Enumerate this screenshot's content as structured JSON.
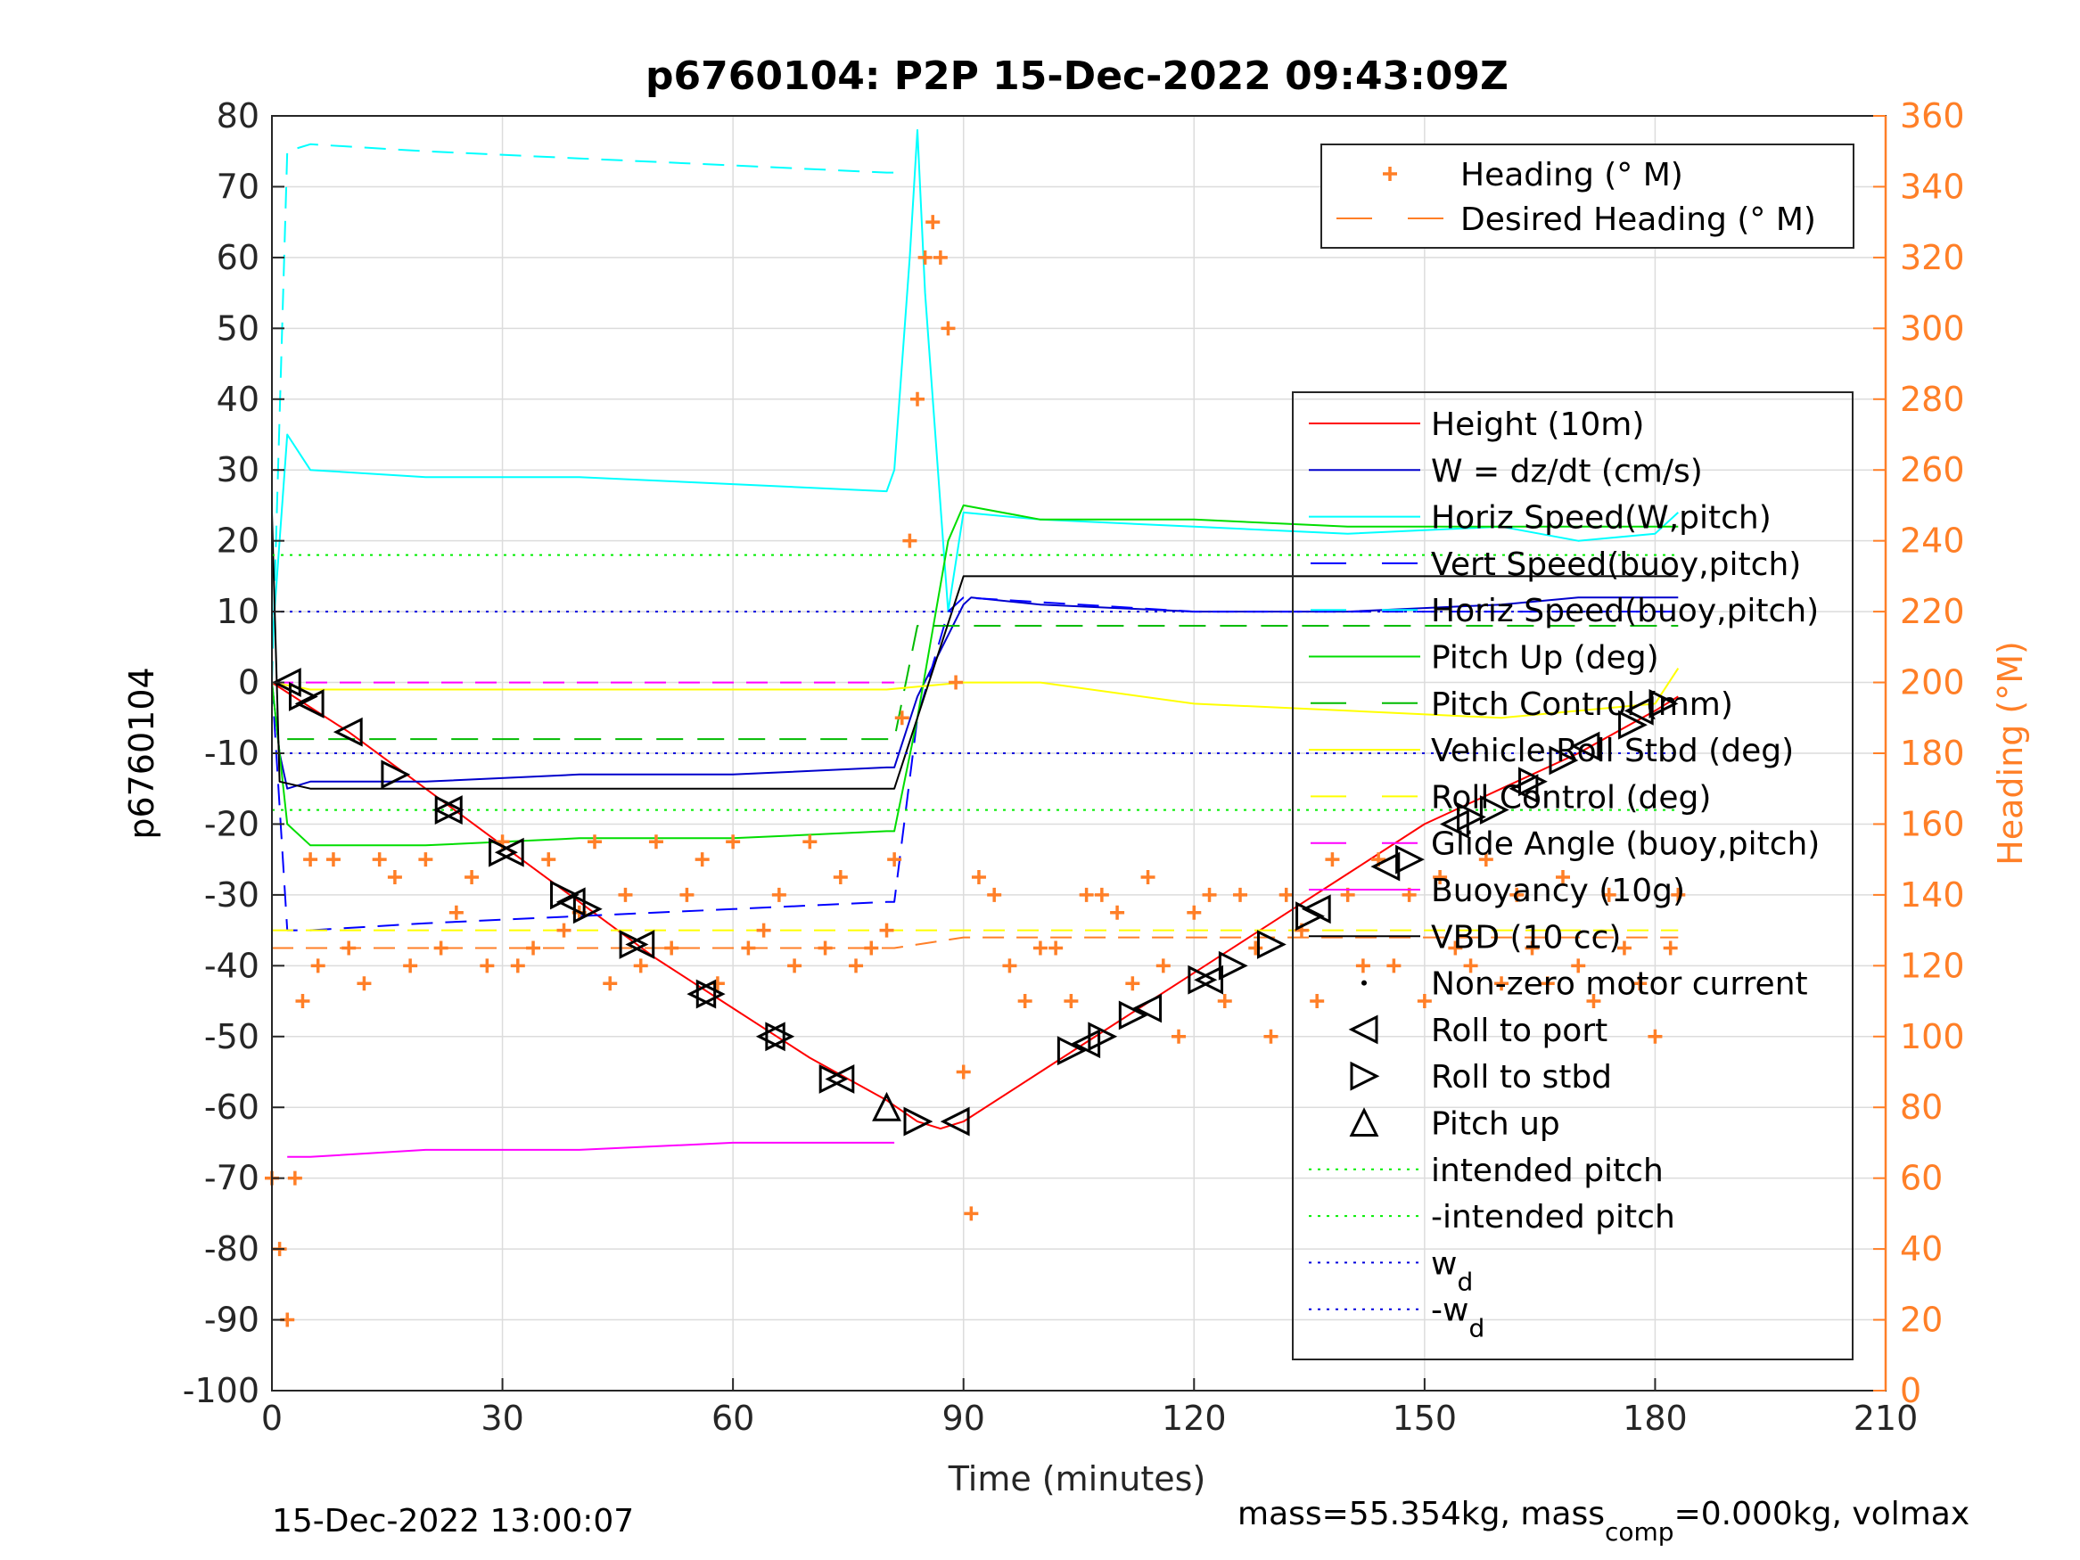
{
  "colors": {
    "heading": "#FF7F27",
    "height": "#FF0000",
    "w": "#0000CC",
    "horiz_speed_w": "#00FFFF",
    "vert_speed_buoy": "#0000FF",
    "horiz_speed_buoy": "#00FFFF",
    "pitch_up": "#00DD00",
    "pitch_control": "#00BB00",
    "vehicle_roll": "#FFFF00",
    "roll_control": "#FFFF00",
    "glide_angle": "#FF00FF",
    "buoyancy": "#FF00FF",
    "vbd": "#000000",
    "intended_pitch": "#00EE00",
    "wd": "#0000DD"
  },
  "chart_data": {
    "type": "line",
    "title": "p6760104: P2P 15-Dec-2022 09:43:09Z",
    "xlabel": "Time (minutes)",
    "ylabel": "p6760104",
    "ylabel_right": "Heading (°M)",
    "xlim": [
      0,
      210
    ],
    "ylim": [
      -100,
      80
    ],
    "ylim_right": [
      0,
      360
    ],
    "x_ticks": [
      "0",
      "30",
      "60",
      "90",
      "120",
      "150",
      "180",
      "210"
    ],
    "y_ticks": [
      "-100",
      "-90",
      "-80",
      "-70",
      "-60",
      "-50",
      "-40",
      "-30",
      "-20",
      "-10",
      "0",
      "10",
      "20",
      "30",
      "40",
      "50",
      "60",
      "70",
      "80"
    ],
    "y_ticks_right": [
      "0",
      "20",
      "40",
      "60",
      "80",
      "100",
      "120",
      "140",
      "160",
      "180",
      "200",
      "220",
      "240",
      "260",
      "280",
      "300",
      "320",
      "340",
      "360"
    ],
    "grid": true,
    "footer_left": "15-Dec-2022 13:00:07",
    "footer_right": {
      "prefix": "mass=55.354kg, mass",
      "sub": "comp",
      "suffix": "=0.000kg, volmax"
    },
    "legend_top": [
      {
        "label": "Heading (° M)",
        "style": "plus"
      },
      {
        "label": "Desired Heading (° M)",
        "style": "dash"
      }
    ],
    "legend_main": [
      {
        "label": "Height (10m)",
        "style": "solid",
        "color": "#FF0000"
      },
      {
        "label": "W = dz/dt (cm/s)",
        "style": "solid",
        "color": "#0000CC"
      },
      {
        "label": "Horiz Speed(W,pitch)",
        "style": "solid",
        "color": "#00FFFF"
      },
      {
        "label": "Vert Speed(buoy,pitch)",
        "style": "dash",
        "color": "#0000FF"
      },
      {
        "label": "Horiz Speed(buoy,pitch)",
        "style": "dash",
        "color": "#00FFFF"
      },
      {
        "label": "Pitch Up (deg)",
        "style": "solid",
        "color": "#00DD00"
      },
      {
        "label": "Pitch Control (mm)",
        "style": "dash",
        "color": "#00BB00"
      },
      {
        "label": "Vehicle Roll Stbd (deg)",
        "style": "solid",
        "color": "#FFFF00"
      },
      {
        "label": "Roll Control (deg)",
        "style": "dash",
        "color": "#FFFF00"
      },
      {
        "label": "Glide Angle (buoy,pitch)",
        "style": "dash",
        "color": "#FF00FF"
      },
      {
        "label": "Buoyancy (10g)",
        "style": "solid",
        "color": "#FF00FF"
      },
      {
        "label": "VBD (10 cc)",
        "style": "solid",
        "color": "#000000"
      },
      {
        "label": "Non-zero motor current",
        "style": "dot",
        "color": "#000000"
      },
      {
        "label": "Roll to port",
        "style": "tri-left",
        "color": "#000000"
      },
      {
        "label": "Roll to stbd",
        "style": "tri-right",
        "color": "#000000"
      },
      {
        "label": "Pitch up",
        "style": "tri-up",
        "color": "#000000"
      },
      {
        "label": "intended pitch",
        "style": "dotted",
        "color": "#00EE00"
      },
      {
        "label": "-intended pitch",
        "style": "dotted",
        "color": "#00EE00"
      },
      {
        "label": "w",
        "sub": "d",
        "style": "dotted",
        "color": "#0000DD"
      },
      {
        "label": "-w",
        "sub": "d",
        "style": "dotted",
        "color": "#0000DD"
      }
    ],
    "series": [
      {
        "name": "Height (10m)",
        "x": [
          0,
          10,
          20,
          30,
          40,
          50,
          60,
          70,
          80,
          84,
          87,
          90,
          100,
          110,
          120,
          130,
          140,
          150,
          160,
          170,
          180,
          183
        ],
        "y": [
          0,
          -7,
          -15,
          -23,
          -31,
          -39,
          -46,
          -53,
          -59,
          -62,
          -63,
          -62,
          -55,
          -48,
          -41,
          -34,
          -27,
          -20,
          -15,
          -10,
          -4,
          -2
        ]
      },
      {
        "name": "W = dz/dt (cm/s)",
        "x": [
          0,
          1,
          2,
          5,
          20,
          40,
          60,
          80,
          81,
          84,
          90,
          91,
          100,
          120,
          140,
          160,
          170,
          180,
          183
        ],
        "y": [
          0,
          -10,
          -15,
          -14,
          -14,
          -13,
          -13,
          -12,
          -12,
          -2,
          11,
          12,
          11,
          10,
          10,
          11,
          12,
          12,
          12
        ]
      },
      {
        "name": "Horiz Speed(W,pitch)",
        "x": [
          0,
          1,
          2,
          5,
          20,
          40,
          60,
          80,
          81,
          83,
          84,
          85,
          88,
          90,
          100,
          120,
          140,
          160,
          170,
          180,
          183
        ],
        "y": [
          5,
          20,
          35,
          30,
          29,
          29,
          28,
          27,
          30,
          60,
          78,
          55,
          10,
          24,
          23,
          22,
          21,
          22,
          20,
          21,
          24
        ]
      },
      {
        "name": "Vert Speed(buoy,pitch)",
        "x": [
          0,
          2,
          5,
          20,
          40,
          60,
          80,
          81,
          84,
          88,
          90,
          120,
          150,
          183
        ],
        "y": [
          0,
          -35,
          -35,
          -34,
          -33,
          -32,
          -31,
          -31,
          -5,
          10,
          12,
          10,
          10,
          10
        ]
      },
      {
        "name": "Horiz Speed(buoy,pitch)",
        "x": [
          0,
          2,
          5,
          20,
          40,
          60,
          80,
          81
        ],
        "y": [
          0,
          75,
          76,
          75,
          74,
          73,
          72,
          72
        ]
      },
      {
        "name": "Pitch Up (deg)",
        "x": [
          0,
          2,
          5,
          20,
          40,
          60,
          80,
          81,
          84,
          88,
          90,
          100,
          120,
          140,
          160,
          180,
          183
        ],
        "y": [
          0,
          -20,
          -23,
          -23,
          -22,
          -22,
          -21,
          -21,
          -5,
          20,
          25,
          23,
          23,
          22,
          22,
          22,
          22
        ]
      },
      {
        "name": "Pitch Control (mm)",
        "x": [
          2,
          81,
          84,
          183
        ],
        "y": [
          -8,
          -8,
          8,
          8
        ]
      },
      {
        "name": "Vehicle Roll Stbd (deg)",
        "x": [
          0,
          5,
          20,
          40,
          60,
          80,
          90,
          100,
          120,
          140,
          160,
          180,
          183
        ],
        "y": [
          0,
          -1,
          -1,
          -1,
          -1,
          -1,
          0,
          0,
          -3,
          -4,
          -5,
          -3,
          2
        ]
      },
      {
        "name": "Roll Control (deg)",
        "x": [
          0,
          183
        ],
        "y": [
          -35,
          -35
        ]
      },
      {
        "name": "Glide Angle (buoy,pitch)",
        "x": [
          0,
          81
        ],
        "y": [
          0,
          0
        ]
      },
      {
        "name": "Buoyancy (10g)",
        "x": [
          2,
          5,
          20,
          40,
          60,
          80,
          81
        ],
        "y": [
          -67,
          -67,
          -66,
          -66,
          -65,
          -65,
          -65
        ]
      },
      {
        "name": "VBD (10 cc)",
        "x": [
          0,
          1,
          5,
          20,
          40,
          60,
          80,
          81,
          90,
          183
        ],
        "y": [
          24,
          -14,
          -15,
          -15,
          -15,
          -15,
          -15,
          -15,
          15,
          15
        ]
      },
      {
        "name": "intended pitch",
        "x": [
          0,
          183
        ],
        "y": [
          18,
          18
        ]
      },
      {
        "name": "-intended pitch",
        "x": [
          0,
          183
        ],
        "y": [
          -18,
          -18
        ]
      },
      {
        "name": "w_d",
        "x": [
          0,
          183
        ],
        "y": [
          10,
          10
        ]
      },
      {
        "name": "-w_d",
        "x": [
          0,
          183
        ],
        "y": [
          -10,
          -10
        ]
      },
      {
        "name": "Desired Heading (° M)",
        "axis": "right",
        "x": [
          0,
          81,
          90,
          183
        ],
        "y": [
          125,
          125,
          128,
          128
        ]
      },
      {
        "name": "Heading (° M)",
        "axis": "right",
        "x": [
          0,
          1,
          2,
          3,
          4,
          5,
          6,
          8,
          10,
          12,
          14,
          16,
          18,
          20,
          22,
          24,
          26,
          28,
          30,
          32,
          34,
          36,
          38,
          40,
          42,
          44,
          46,
          48,
          50,
          52,
          54,
          56,
          58,
          60,
          62,
          64,
          66,
          68,
          70,
          72,
          74,
          76,
          78,
          80,
          81,
          82,
          83,
          84,
          85,
          86,
          87,
          88,
          89,
          90,
          91,
          92,
          94,
          96,
          98,
          100,
          102,
          104,
          106,
          108,
          110,
          112,
          114,
          116,
          118,
          120,
          122,
          124,
          126,
          128,
          130,
          132,
          134,
          136,
          138,
          140,
          142,
          144,
          146,
          148,
          150,
          152,
          154,
          156,
          158,
          160,
          162,
          164,
          166,
          168,
          170,
          172,
          174,
          176,
          178,
          180,
          182,
          183
        ],
        "y": [
          60,
          40,
          20,
          60,
          110,
          150,
          120,
          150,
          125,
          115,
          150,
          145,
          120,
          150,
          125,
          135,
          145,
          120,
          155,
          120,
          125,
          150,
          130,
          135,
          155,
          115,
          140,
          120,
          155,
          125,
          140,
          150,
          115,
          155,
          125,
          130,
          140,
          120,
          155,
          125,
          145,
          120,
          125,
          130,
          150,
          190,
          240,
          280,
          320,
          330,
          320,
          300,
          200,
          90,
          50,
          145,
          140,
          120,
          110,
          125,
          125,
          110,
          140,
          140,
          135,
          115,
          145,
          120,
          100,
          135,
          140,
          110,
          140,
          125,
          100,
          140,
          130,
          110,
          150,
          140,
          120,
          150,
          120,
          140,
          110,
          145,
          125,
          120,
          150,
          115,
          140,
          125,
          115,
          145,
          120,
          110,
          140,
          125,
          115,
          100,
          125,
          140
        ]
      }
    ],
    "markers": {
      "roll_to_port": {
        "x": [
          2,
          5,
          10,
          23,
          31,
          39,
          48,
          56,
          65,
          74,
          89,
          106,
          114,
          122,
          136,
          145,
          154,
          163,
          171,
          178
        ],
        "y": [
          0,
          -3,
          -7,
          -18,
          -24,
          -31,
          -37,
          -44,
          -50,
          -56,
          -62,
          -51,
          -46,
          -42,
          -32,
          -26,
          -20,
          -15,
          -9,
          -4
        ]
      },
      "roll_to_stbd": {
        "x": [
          4,
          16,
          23,
          30,
          38,
          41,
          47,
          57,
          66,
          73,
          84,
          104,
          108,
          112,
          121,
          125,
          130,
          135,
          148,
          156,
          159,
          164,
          168,
          177,
          181
        ],
        "y": [
          -2,
          -13,
          -18,
          -24,
          -30,
          -32,
          -37,
          -44,
          -50,
          -56,
          -62,
          -52,
          -50,
          -47,
          -42,
          -40,
          -37,
          -33,
          -25,
          -19,
          -18,
          -14,
          -11,
          -6,
          -3
        ]
      },
      "pitch_up": {
        "x": [
          80
        ],
        "y": [
          -60
        ]
      }
    }
  }
}
